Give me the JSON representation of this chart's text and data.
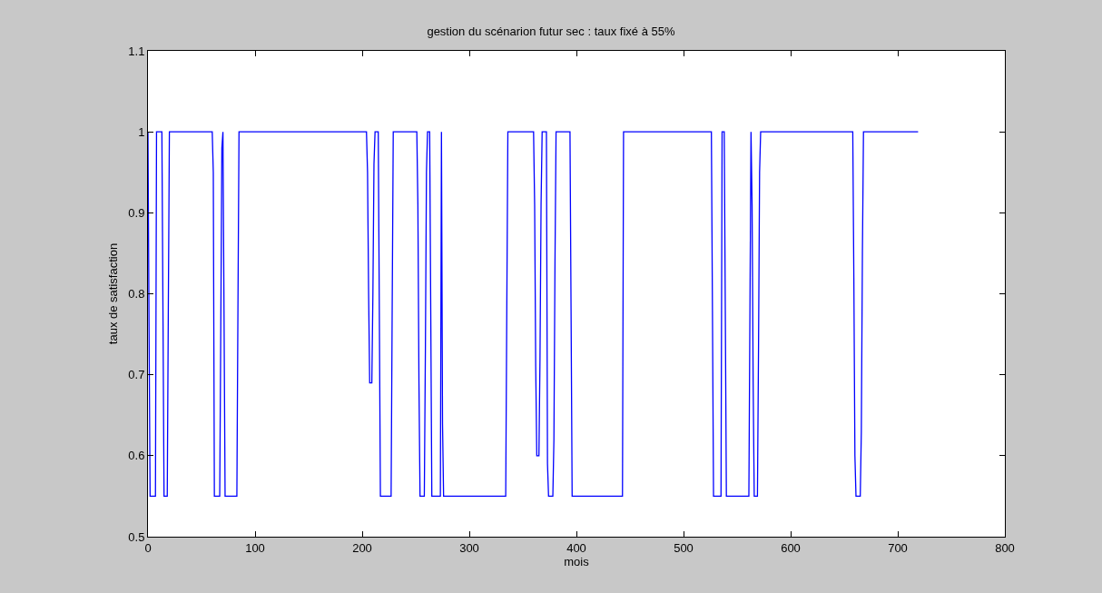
{
  "chart_data": {
    "type": "line",
    "title": "gestion du scénarion futur sec : taux fixé à 55%",
    "xlabel": "mois",
    "ylabel": "taux de satisfaction",
    "x": [
      0,
      1,
      2,
      7,
      8,
      13,
      14,
      15,
      18,
      19,
      20,
      60,
      61,
      62,
      67,
      68,
      69,
      70,
      71,
      72,
      83,
      84,
      85,
      204,
      205,
      206,
      207,
      209,
      210,
      211,
      212,
      215,
      216,
      217,
      227,
      228,
      229,
      251,
      252,
      253,
      254,
      258,
      259,
      260,
      261,
      263,
      264,
      265,
      273,
      274,
      275,
      276,
      334,
      335,
      336,
      360,
      361,
      362,
      363,
      365,
      366,
      367,
      368,
      372,
      373,
      374,
      378,
      379,
      380,
      381,
      394,
      395,
      396,
      443,
      444,
      526,
      527,
      528,
      535,
      536,
      538,
      539,
      540,
      561,
      562,
      563,
      564,
      565,
      566,
      569,
      570,
      571,
      572,
      658,
      659,
      660,
      661,
      665,
      666,
      667,
      668,
      719
    ],
    "series": [
      {
        "color": "#0000ff",
        "values": [
          1,
          0.76,
          0.55,
          0.55,
          1,
          1,
          0.78,
          0.55,
          0.55,
          0.78,
          1,
          1,
          0.95,
          0.55,
          0.55,
          0.76,
          0.98,
          1,
          0.78,
          0.55,
          0.55,
          0.78,
          1,
          1,
          0.95,
          0.8,
          0.69,
          0.69,
          0.8,
          0.96,
          1,
          1,
          0.78,
          0.55,
          0.55,
          0.78,
          1,
          1,
          0.91,
          0.69,
          0.55,
          0.55,
          0.73,
          0.95,
          1,
          1,
          0.78,
          0.55,
          0.55,
          1,
          0.64,
          0.55,
          0.55,
          0.78,
          1,
          1,
          0.91,
          0.71,
          0.6,
          0.6,
          0.72,
          0.91,
          1,
          1,
          0.59,
          0.55,
          0.55,
          0.62,
          0.84,
          1,
          1,
          0.78,
          0.55,
          0.55,
          1,
          1,
          0.78,
          0.55,
          0.55,
          1,
          1,
          0.78,
          0.55,
          0.55,
          0.78,
          1,
          0.91,
          0.69,
          0.55,
          0.55,
          0.73,
          0.95,
          1,
          1,
          0.82,
          0.6,
          0.55,
          0.55,
          0.63,
          0.85,
          1,
          1
        ]
      }
    ],
    "xlim": [
      0,
      800
    ],
    "xticks": [
      0,
      100,
      200,
      300,
      400,
      500,
      600,
      700,
      800
    ],
    "ylim": [
      0.5,
      1.1
    ],
    "yticks": [
      0.5,
      0.6,
      0.7,
      0.8,
      0.9,
      1,
      1.1
    ],
    "grid": false,
    "marker": "none",
    "line_style": "solid"
  }
}
